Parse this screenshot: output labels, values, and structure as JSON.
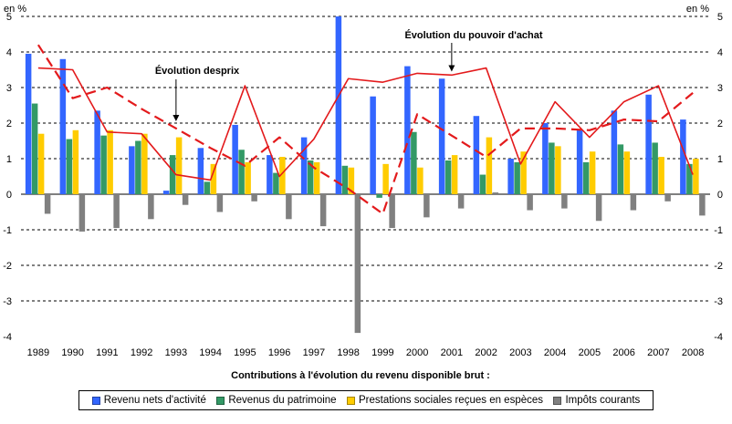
{
  "chart_data": {
    "type": "bar",
    "unit_left": "en %",
    "unit_right": "en %",
    "xlabel": "Contributions à l'évolution du revenu disponible brut :",
    "ylim": [
      -4,
      5
    ],
    "yticks": [
      -4,
      -3,
      -2,
      -1,
      0,
      1,
      2,
      3,
      4,
      5
    ],
    "grid": "horizontal-dashed",
    "legend_position": "bottom",
    "categories": [
      "1989",
      "1990",
      "1991",
      "1992",
      "1993",
      "1994",
      "1995",
      "1996",
      "1997",
      "1998",
      "1999",
      "2000",
      "2001",
      "2002",
      "2003",
      "2004",
      "2005",
      "2006",
      "2007",
      "2008"
    ],
    "series": [
      {
        "name": "Revenu nets d'activité",
        "color": "#3366ff",
        "values": [
          3.95,
          3.8,
          2.35,
          1.35,
          0.1,
          1.3,
          1.95,
          1.1,
          1.6,
          5.0,
          2.75,
          3.6,
          3.25,
          2.2,
          1.0,
          2.0,
          1.8,
          2.35,
          2.8,
          2.1
        ]
      },
      {
        "name": "Revenus du patrimoine",
        "color": "#339966",
        "values": [
          2.55,
          1.55,
          1.65,
          1.5,
          1.1,
          0.35,
          1.25,
          0.6,
          0.95,
          0.8,
          -0.1,
          1.75,
          0.95,
          0.55,
          0.9,
          1.45,
          0.9,
          1.4,
          1.45,
          0.85
        ]
      },
      {
        "name": "Prestations sociales reçues en espèces",
        "color": "#ffcc00",
        "values": [
          1.7,
          1.8,
          1.8,
          1.7,
          1.6,
          0.85,
          0.9,
          1.05,
          0.9,
          0.75,
          0.85,
          0.75,
          1.1,
          1.6,
          1.2,
          1.35,
          1.2,
          1.2,
          1.05,
          1.0
        ]
      },
      {
        "name": "Impôts courants",
        "color": "#808080",
        "values": [
          -0.55,
          -1.05,
          -0.95,
          -0.7,
          -0.3,
          -0.5,
          -0.2,
          -0.7,
          -0.9,
          -3.9,
          -0.95,
          -0.65,
          -0.4,
          0.05,
          -0.45,
          -0.4,
          -0.75,
          -0.45,
          -0.2,
          -0.6
        ]
      }
    ],
    "lines": [
      {
        "name": "Évolution du pouvoir d'achat",
        "color": "#e31a1c",
        "style": "solid",
        "values": [
          3.55,
          3.5,
          1.75,
          1.7,
          0.55,
          0.4,
          3.05,
          0.5,
          1.55,
          3.25,
          3.15,
          3.4,
          3.35,
          3.55,
          0.85,
          2.6,
          1.6,
          2.6,
          3.05,
          0.55
        ]
      },
      {
        "name": "Évolution desprix",
        "color": "#e31a1c",
        "style": "dashed",
        "values": [
          4.2,
          2.7,
          3.0,
          2.4,
          1.85,
          1.3,
          0.8,
          1.6,
          0.75,
          0.15,
          -0.55,
          2.25,
          1.65,
          1.05,
          1.85,
          1.85,
          1.8,
          2.1,
          2.05,
          2.85
        ]
      }
    ],
    "annotations": [
      {
        "text": "Évolution du pouvoir d'achat",
        "target_category": "2001",
        "target_value": 3.45
      },
      {
        "text": "Évolution desprix",
        "target_category": "1993",
        "target_value": 2.05
      }
    ]
  }
}
